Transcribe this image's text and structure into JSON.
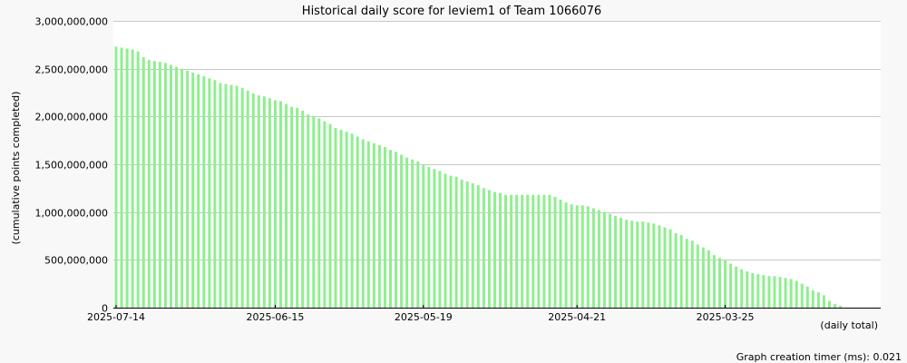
{
  "colors": {
    "background": "#f8f8f8",
    "plot_background": "#ffffff",
    "bar": "#90ee90",
    "grid": "#c8c8c8",
    "axis": "#000000"
  },
  "footer": "Graph creation timer (ms): 0.021",
  "chart_data": {
    "type": "bar",
    "title": "Historical daily score for leviem1 of Team 1066076",
    "ylabel": "(cumulative points completed)",
    "xlabel": "(daily total)",
    "ylim": [
      0,
      3000000000
    ],
    "yticks": [
      0,
      500000000,
      1000000000,
      1500000000,
      2000000000,
      2500000000,
      3000000000
    ],
    "ytick_labels": [
      "0",
      "500,000,000",
      "1,000,000,000",
      "1,500,000,000",
      "2,000,000,000",
      "2,500,000,000",
      "3,000,000,000"
    ],
    "grid": "horizontal",
    "x_order": "newest-first",
    "x_tick_labels": [
      {
        "label": "2025-07-14",
        "index": 0
      },
      {
        "label": "2025-06-15",
        "index": 29
      },
      {
        "label": "2025-05-19",
        "index": 56
      },
      {
        "label": "2025-04-21",
        "index": 84
      },
      {
        "label": "2025-03-25",
        "index": 111
      }
    ],
    "values": [
      2730000000,
      2720000000,
      2710000000,
      2700000000,
      2680000000,
      2620000000,
      2590000000,
      2580000000,
      2570000000,
      2560000000,
      2540000000,
      2520000000,
      2500000000,
      2480000000,
      2460000000,
      2440000000,
      2420000000,
      2400000000,
      2380000000,
      2350000000,
      2340000000,
      2330000000,
      2320000000,
      2300000000,
      2270000000,
      2240000000,
      2220000000,
      2210000000,
      2190000000,
      2170000000,
      2160000000,
      2130000000,
      2100000000,
      2090000000,
      2060000000,
      2020000000,
      2000000000,
      1980000000,
      1950000000,
      1920000000,
      1880000000,
      1860000000,
      1840000000,
      1820000000,
      1790000000,
      1760000000,
      1740000000,
      1720000000,
      1700000000,
      1680000000,
      1650000000,
      1630000000,
      1600000000,
      1570000000,
      1550000000,
      1530000000,
      1490000000,
      1470000000,
      1450000000,
      1430000000,
      1400000000,
      1380000000,
      1370000000,
      1340000000,
      1320000000,
      1300000000,
      1280000000,
      1250000000,
      1230000000,
      1210000000,
      1200000000,
      1180000000,
      1180000000,
      1180000000,
      1180000000,
      1180000000,
      1180000000,
      1180000000,
      1180000000,
      1180000000,
      1160000000,
      1130000000,
      1100000000,
      1080000000,
      1070000000,
      1070000000,
      1060000000,
      1040000000,
      1020000000,
      1000000000,
      980000000,
      960000000,
      940000000,
      920000000,
      910000000,
      900000000,
      900000000,
      890000000,
      880000000,
      860000000,
      840000000,
      820000000,
      780000000,
      760000000,
      720000000,
      700000000,
      660000000,
      630000000,
      600000000,
      550000000,
      520000000,
      500000000,
      460000000,
      430000000,
      400000000,
      380000000,
      360000000,
      350000000,
      340000000,
      330000000,
      330000000,
      320000000,
      310000000,
      300000000,
      280000000,
      250000000,
      220000000,
      180000000,
      160000000,
      130000000,
      70000000,
      40000000,
      20000000
    ]
  }
}
